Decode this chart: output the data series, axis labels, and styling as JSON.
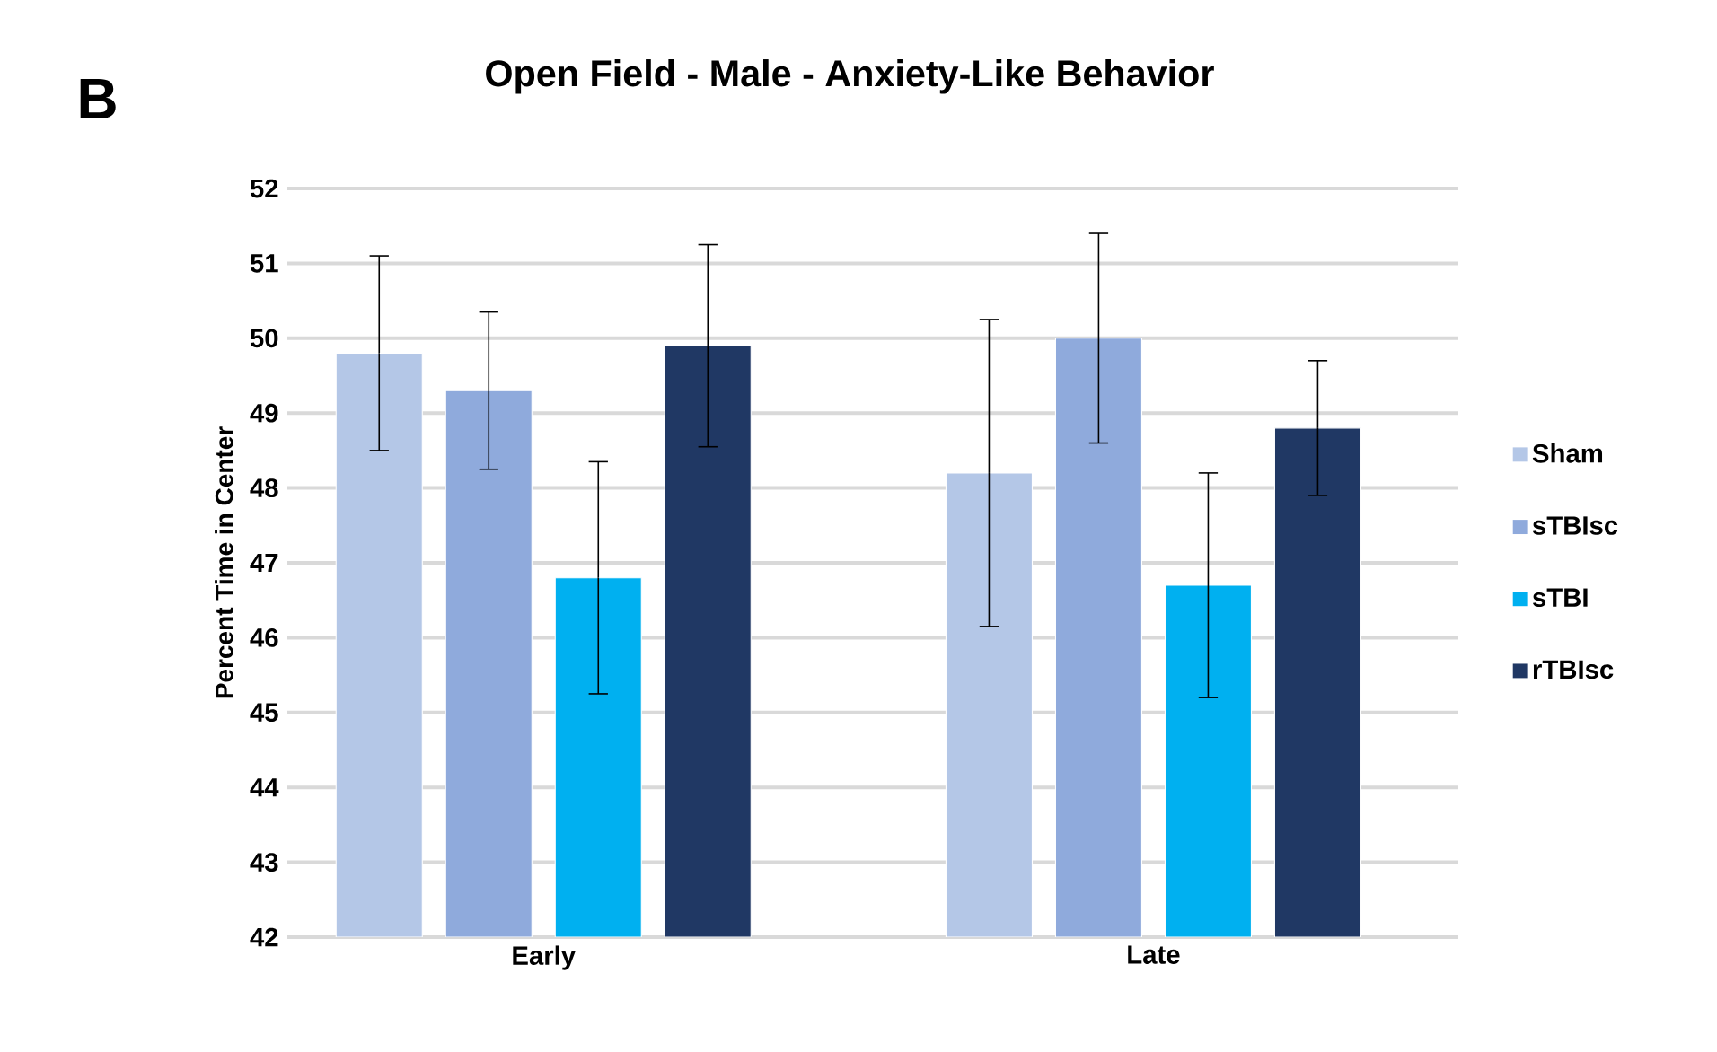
{
  "chart_data": {
    "type": "bar",
    "title": "Open Field - Male - Anxiety-Like Behavior",
    "ylabel": "Percent Time in Center",
    "categories": [
      "Early",
      "Late"
    ],
    "series": [
      {
        "name": "Sham",
        "color": "#b4c7e7",
        "values": [
          49.8,
          48.2
        ],
        "errors": [
          1.3,
          2.05
        ]
      },
      {
        "name": "sTBIsc",
        "color": "#8faadc",
        "values": [
          49.3,
          50.0
        ],
        "errors": [
          1.05,
          1.4
        ]
      },
      {
        "name": "sTBI",
        "color": "#00b0f0",
        "values": [
          46.8,
          46.7
        ],
        "errors": [
          1.55,
          1.5
        ]
      },
      {
        "name": "rTBIsc",
        "color": "#203864",
        "values": [
          49.9,
          48.8
        ],
        "errors": [
          1.35,
          0.9
        ]
      }
    ],
    "ylim": [
      42,
      52
    ],
    "yticks": [
      42,
      43,
      44,
      45,
      46,
      47,
      48,
      49,
      50,
      51,
      52
    ],
    "grid": "y",
    "legend": "right",
    "annotations": [
      "B"
    ]
  }
}
